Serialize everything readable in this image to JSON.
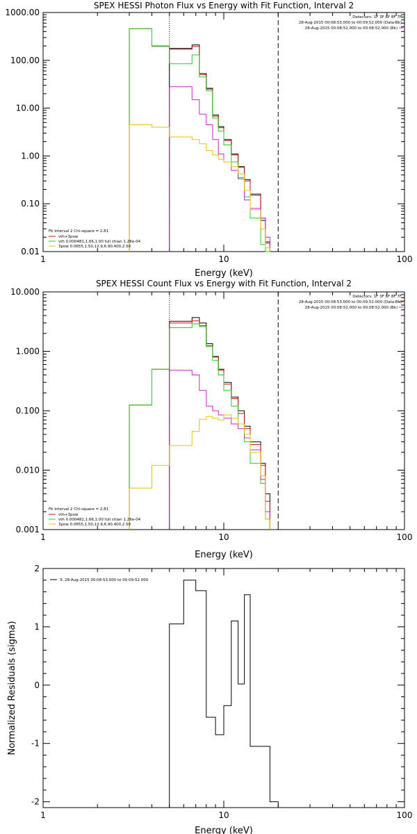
{
  "chart_data": [
    {
      "type": "line",
      "title": "SPEX HESSI Photon Flux vs Energy with Fit Function, Interval 2",
      "xlabel": "Energy (keV)",
      "ylabel": "",
      "xscale": "log",
      "yscale": "log",
      "xlim": [
        1,
        100
      ],
      "ylim": [
        0.01,
        1000
      ],
      "x_ticks": [
        1,
        10,
        100
      ],
      "x_tick_labels": [
        "1",
        "10",
        "100"
      ],
      "y_ticks": [
        0.01,
        0.1,
        1,
        10,
        100,
        1000
      ],
      "y_tick_labels": [
        "0.01",
        "0.10",
        "1.00",
        "10.00",
        "100.00",
        "1000.00"
      ],
      "vlines": [
        {
          "x": 5,
          "style": "dotted"
        },
        {
          "x": 20,
          "style": "dashed"
        }
      ],
      "info_lines": [
        "Detectors: 1F 3F 6F 8F 7F",
        "28-Aug-2015 00:08:53.000 to 00:09:52.000 (Data-Bk)",
        "28-Aug-2015 00:08:52.000 to 00:08:52.000 (Bk)"
      ],
      "fit_label": "Fit Interval 2   Chi-square = 2.81",
      "legend": [
        {
          "label": "vth+3pow",
          "color": "#d01010"
        },
        {
          "label": "vth 0.000481,1.66,1.00  full chian 1.26e-04",
          "color": "#22cc22"
        },
        {
          "label": "3pow 0.0655,1.50,12.9,6.90,400,2.50",
          "color": "#e8c000"
        }
      ],
      "edges": [
        3,
        4,
        5,
        6,
        6.67,
        7,
        7.33,
        7.67,
        8,
        8.33,
        8.67,
        9,
        9.33,
        9.67,
        10,
        10.67,
        11,
        11.67,
        12,
        12.67,
        13,
        13.67,
        14,
        15,
        16,
        17,
        18,
        19,
        20
      ],
      "series": [
        {
          "name": "",
          "color": "#000000",
          "start": 5,
          "values": [
            178,
            178,
            210,
            210,
            53,
            53,
            26,
            26,
            7.2,
            7.2,
            4.1,
            4.1,
            2.2,
            2.2,
            1.1,
            1.1,
            0.6,
            0.6,
            0.32,
            0.32,
            0.16,
            0.16,
            0.045,
            0.016
          ]
        },
        {
          "name": "vth+3pow",
          "color": "#d01010",
          "start": 3,
          "values": [
            460,
            200,
            170,
            170,
            195,
            195,
            50,
            50,
            25,
            25,
            6.8,
            6.8,
            3.9,
            3.9,
            2.1,
            2.1,
            1.05,
            1.05,
            0.58,
            0.58,
            0.3,
            0.3,
            0.15,
            0.15,
            0.05,
            0.015
          ]
        },
        {
          "name": "vth 0.000481,1.66,1.00  full chian 1.26e-04",
          "color": "#22cc22",
          "start": 3,
          "values": [
            460,
            195,
            85,
            85,
            130,
            130,
            45,
            45,
            23,
            23,
            6.2,
            6.2,
            3.3,
            3.3,
            1.7,
            1.7,
            0.75,
            0.75,
            0.33,
            0.33,
            0.14,
            0.14,
            0.05,
            0.05,
            0.014,
            0.01
          ]
        },
        {
          "name": "",
          "color": "#cc22cc",
          "start": 5,
          "values": [
            28,
            28,
            15,
            15,
            7.5,
            7.5,
            4.5,
            4.5,
            2.2,
            2.2,
            1.1,
            1.1,
            0.75,
            0.75,
            0.5,
            0.5,
            0.35,
            0.35,
            0.12,
            0.12,
            0.08,
            0.08,
            0.05,
            0.02
          ]
        },
        {
          "name": "3pow 0.0655,1.50,12.9,6.90,400,2.50",
          "color": "#e8c000",
          "start": 3,
          "values": [
            4.5,
            4.0,
            2.5,
            2.5,
            2.2,
            2.2,
            1.8,
            1.8,
            1.3,
            1.3,
            1.05,
            1.05,
            0.85,
            0.85,
            0.75,
            0.75,
            0.6,
            0.6,
            0.42,
            0.42,
            0.19,
            0.19,
            0.075,
            0.075,
            0.03,
            0.012
          ]
        }
      ]
    },
    {
      "type": "line",
      "title": "SPEX HESSI Count Flux vs Energy with Fit Function, Interval 2",
      "xlabel": "Energy (keV)",
      "ylabel": "",
      "xscale": "log",
      "yscale": "log",
      "xlim": [
        1,
        100
      ],
      "ylim": [
        0.001,
        10
      ],
      "x_ticks": [
        1,
        10,
        100
      ],
      "x_tick_labels": [
        "1",
        "10",
        "100"
      ],
      "y_ticks": [
        0.001,
        0.01,
        0.1,
        1,
        10
      ],
      "y_tick_labels": [
        "0.001",
        "0.010",
        "0.100",
        "1.000",
        "10.000"
      ],
      "vlines": [
        {
          "x": 5,
          "style": "dotted"
        },
        {
          "x": 20,
          "style": "dashed"
        }
      ],
      "info_lines": [
        "Detectors: 1F 3F 6F 8F 7F",
        "28-Aug-2015 00:08:53.000 to 00:09:52.000 (Data-Bk)",
        "28-Aug-2015 00:08:52.000 to 00:08:52.000 (Bk)"
      ],
      "fit_label": "Fit Interval 2   Chi-square = 2.81",
      "legend": [
        {
          "label": "vth+3pow",
          "color": "#d01010"
        },
        {
          "label": "vth 0.000481,1.66,1.00  full chian 1.26e-04",
          "color": "#22cc22"
        },
        {
          "label": "3pow 0.0655,1.50,12.9,6.90,400,2.50",
          "color": "#e8c000"
        }
      ],
      "edges": [
        3,
        4,
        5,
        6,
        6.67,
        7,
        7.33,
        7.67,
        8,
        8.33,
        8.67,
        9,
        9.33,
        9.67,
        10,
        10.67,
        11,
        11.67,
        12,
        12.67,
        13,
        13.67,
        14,
        15,
        16,
        17,
        18,
        19,
        20
      ],
      "series": [
        {
          "name": "",
          "color": "#000000",
          "start": 5,
          "values": [
            3.2,
            3.2,
            3.7,
            3.7,
            3.0,
            3.0,
            1.35,
            1.35,
            0.82,
            0.82,
            0.5,
            0.5,
            0.3,
            0.3,
            0.17,
            0.17,
            0.1,
            0.1,
            0.055,
            0.055,
            0.03,
            0.03,
            0.013,
            0.004
          ]
        },
        {
          "name": "vth+3pow",
          "color": "#d01010",
          "start": 3,
          "values": [
            0.125,
            0.5,
            3.0,
            3.0,
            3.25,
            3.25,
            2.7,
            2.7,
            1.25,
            1.25,
            0.8,
            0.8,
            0.48,
            0.48,
            0.28,
            0.28,
            0.16,
            0.16,
            0.09,
            0.09,
            0.05,
            0.05,
            0.027,
            0.027,
            0.012,
            0.003
          ]
        },
        {
          "name": "vth 0.000481,1.66,1.00  full chian 1.26e-04",
          "color": "#22cc22",
          "start": 3,
          "values": [
            0.125,
            0.5,
            2.5,
            2.5,
            2.9,
            2.9,
            2.6,
            2.6,
            1.2,
            1.2,
            0.7,
            0.7,
            0.4,
            0.4,
            0.22,
            0.22,
            0.12,
            0.12,
            0.06,
            0.06,
            0.03,
            0.03,
            0.013,
            0.013,
            0.006,
            0.0015
          ]
        },
        {
          "name": "",
          "color": "#cc22cc",
          "start": 5,
          "values": [
            0.48,
            0.48,
            0.4,
            0.4,
            0.22,
            0.22,
            0.12,
            0.12,
            0.1,
            0.1,
            0.085,
            0.085,
            0.075,
            0.075,
            0.06,
            0.06,
            0.05,
            0.05,
            0.035,
            0.035,
            0.022,
            0.022,
            0.007,
            0.002
          ]
        },
        {
          "name": "3pow 0.0655,1.50,12.9,6.90,400,2.50",
          "color": "#e8c000",
          "start": 3,
          "values": [
            0.005,
            0.012,
            0.026,
            0.026,
            0.045,
            0.045,
            0.072,
            0.072,
            0.08,
            0.08,
            0.075,
            0.075,
            0.07,
            0.07,
            0.085,
            0.085,
            0.075,
            0.075,
            0.06,
            0.06,
            0.04,
            0.04,
            0.02,
            0.02,
            0.008,
            0.0015
          ]
        }
      ]
    },
    {
      "type": "line",
      "title": "",
      "xlabel": "Energy (keV)",
      "ylabel": "Normalized Residuals (sigma)",
      "xscale": "log",
      "yscale": "linear",
      "xlim": [
        1,
        100
      ],
      "ylim": [
        -2.1,
        2.0
      ],
      "x_ticks": [
        1,
        10,
        100
      ],
      "x_tick_labels": [
        "1",
        "10",
        "100"
      ],
      "y_ticks": [
        -2,
        -1,
        0,
        1,
        2
      ],
      "y_tick_labels": [
        "-2",
        "-1",
        "0",
        "1",
        "2"
      ],
      "legend": [
        {
          "label": "3. 28-Aug-2015 00:08:53.000 to 00:09:52.000",
          "color": "#000000"
        }
      ],
      "edges": [
        5,
        6,
        7,
        8,
        9,
        10,
        11,
        12,
        13,
        14,
        15,
        16,
        17,
        18,
        19,
        20
      ],
      "series": [
        {
          "name": "3. 28-Aug-2015 00:08:53.000 to 00:09:52.000",
          "color": "#000000",
          "values": [
            1.05,
            1.8,
            1.62,
            -0.55,
            -0.85,
            -0.35,
            1.1,
            0.02,
            1.55,
            -1.05,
            -1.05,
            -1.05,
            -1.05,
            -2.0,
            -2.0
          ]
        }
      ]
    }
  ]
}
